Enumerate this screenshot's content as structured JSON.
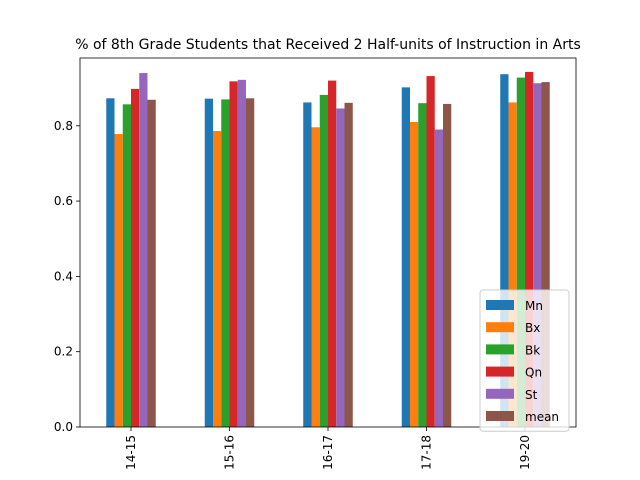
{
  "chart_data": {
    "type": "bar",
    "title": "% of 8th Grade Students that Received 2 Half-units of Instruction in Arts",
    "xlabel": "",
    "ylabel": "",
    "categories": [
      "14-15",
      "15-16",
      "16-17",
      "17-18",
      "19-20"
    ],
    "ylim": [
      0,
      0.98
    ],
    "yticks": [
      0.0,
      0.2,
      0.4,
      0.6,
      0.8
    ],
    "ytick_labels": [
      "0.0",
      "0.2",
      "0.4",
      "0.6",
      "0.8"
    ],
    "legend_position": "lower-right",
    "grid": false,
    "series": [
      {
        "name": "Mn",
        "color": "#1f77b4",
        "values": [
          0.873,
          0.872,
          0.862,
          0.902,
          0.937
        ]
      },
      {
        "name": "Bx",
        "color": "#ff7f0e",
        "values": [
          0.778,
          0.786,
          0.796,
          0.81,
          0.862
        ]
      },
      {
        "name": "Bk",
        "color": "#2ca02c",
        "values": [
          0.857,
          0.87,
          0.882,
          0.86,
          0.928
        ]
      },
      {
        "name": "Qn",
        "color": "#d62728",
        "values": [
          0.898,
          0.918,
          0.92,
          0.932,
          0.943
        ]
      },
      {
        "name": "St",
        "color": "#9467bd",
        "values": [
          0.94,
          0.922,
          0.846,
          0.79,
          0.913
        ]
      },
      {
        "name": "mean",
        "color": "#8c564b",
        "values": [
          0.869,
          0.873,
          0.861,
          0.858,
          0.916
        ]
      }
    ]
  }
}
